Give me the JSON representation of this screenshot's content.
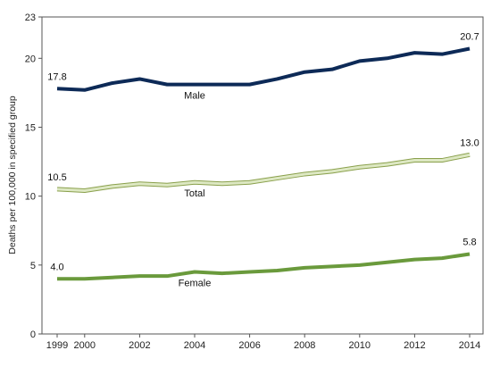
{
  "chart_data": {
    "type": "line",
    "title": "",
    "xlabel": "",
    "ylabel": "Deaths per 100,000 in specified group",
    "xlim": [
      1999,
      2014
    ],
    "ylim": [
      0,
      23
    ],
    "x_ticks": [
      1999,
      2000,
      2002,
      2004,
      2006,
      2008,
      2010,
      2012,
      2014
    ],
    "y_ticks": [
      0,
      5,
      10,
      15,
      20,
      23
    ],
    "grid": false,
    "legend": "none (series labeled directly on lines)",
    "x": [
      1999,
      2000,
      2001,
      2002,
      2003,
      2004,
      2005,
      2006,
      2007,
      2008,
      2009,
      2010,
      2011,
      2012,
      2013,
      2014
    ],
    "series": [
      {
        "name": "Male",
        "color": "#0d2a57",
        "values": [
          17.8,
          17.7,
          18.2,
          18.5,
          18.1,
          18.1,
          18.1,
          18.1,
          18.5,
          19.0,
          19.2,
          19.8,
          20.0,
          20.4,
          20.3,
          20.7
        ],
        "labels": [
          {
            "index": 0,
            "text": "17.8"
          },
          {
            "index": 15,
            "text": "20.7"
          }
        ]
      },
      {
        "name": "Total",
        "color": "#dde8c3",
        "edge_color": "#8aa04c",
        "values": [
          10.5,
          10.4,
          10.7,
          10.9,
          10.8,
          11.0,
          10.9,
          11.0,
          11.3,
          11.6,
          11.8,
          12.1,
          12.3,
          12.6,
          12.6,
          13.0
        ],
        "labels": [
          {
            "index": 0,
            "text": "10.5"
          },
          {
            "index": 15,
            "text": "13.0"
          }
        ]
      },
      {
        "name": "Female",
        "color": "#6a9a3c",
        "values": [
          4.0,
          4.0,
          4.1,
          4.2,
          4.2,
          4.5,
          4.4,
          4.5,
          4.6,
          4.8,
          4.9,
          5.0,
          5.2,
          5.4,
          5.5,
          5.8
        ],
        "labels": [
          {
            "index": 0,
            "text": "4.0"
          },
          {
            "index": 15,
            "text": "5.8"
          }
        ]
      }
    ]
  }
}
